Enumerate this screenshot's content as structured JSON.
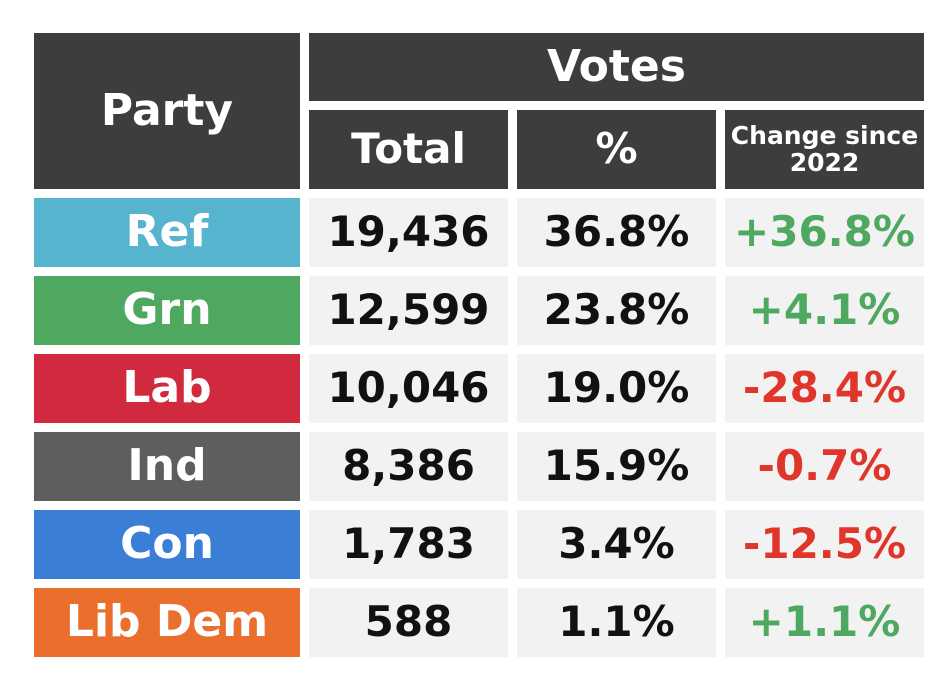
{
  "chart_data": {
    "type": "table",
    "header": {
      "party": "Party",
      "group": "Votes",
      "total": "Total",
      "percent": "%",
      "change": "Change since 2022"
    },
    "rows": [
      {
        "party": "Ref",
        "color": "#57b4cf",
        "total": "19,436",
        "percent": "36.8%",
        "change": "+36.8%"
      },
      {
        "party": "Grn",
        "color": "#4ea85f",
        "total": "12,599",
        "percent": "23.8%",
        "change": "+4.1%"
      },
      {
        "party": "Lab",
        "color": "#d12a3e",
        "total": "10,046",
        "percent": "19.0%",
        "change": "-28.4%"
      },
      {
        "party": "Ind",
        "color": "#5e5e5e",
        "total": "8,386",
        "percent": "15.9%",
        "change": "-0.7%"
      },
      {
        "party": "Con",
        "color": "#3a7ed6",
        "total": "1,783",
        "percent": "3.4%",
        "change": "-12.5%"
      },
      {
        "party": "Lib Dem",
        "color": "#ea6f2d",
        "total": "588",
        "percent": "1.1%",
        "change": "+1.1%"
      }
    ],
    "colors": {
      "header_bg": "#3d3d3d",
      "header_text": "#ffffff",
      "cell_bg": "#f2f2f2",
      "positive": "#4ea85f",
      "negative": "#e0352b"
    }
  }
}
